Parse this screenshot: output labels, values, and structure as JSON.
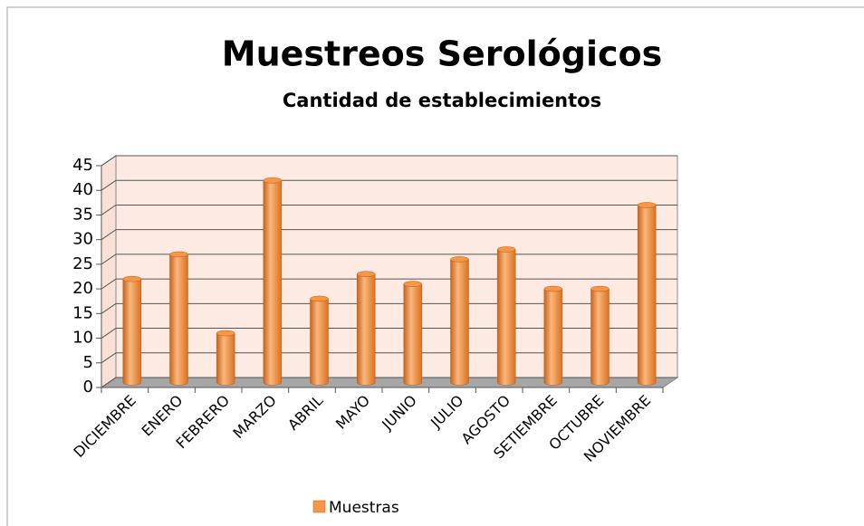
{
  "chart_data": {
    "type": "bar3d",
    "title": "Muestreos Serológicos",
    "subtitle": "Cantidad de establecimientos",
    "categories": [
      "DICIEMBRE",
      "ENERO",
      "FEBRERO",
      "MARZO",
      "ABRIL",
      "MAYO",
      "JUNIO",
      "JULIO",
      "AGOSTO",
      "SETIEMBRE",
      "OCTUBRE",
      "NOVIEMBRE"
    ],
    "series": [
      {
        "name": "Muestras",
        "color": "#f79646",
        "values": [
          21,
          26,
          10,
          41,
          17,
          22,
          20,
          25,
          27,
          19,
          19,
          36
        ]
      }
    ],
    "ylim": [
      0,
      45
    ],
    "yticks": [
      0,
      5,
      10,
      15,
      20,
      25,
      30,
      35,
      40,
      45
    ],
    "grid": true,
    "legend": "bottom"
  }
}
